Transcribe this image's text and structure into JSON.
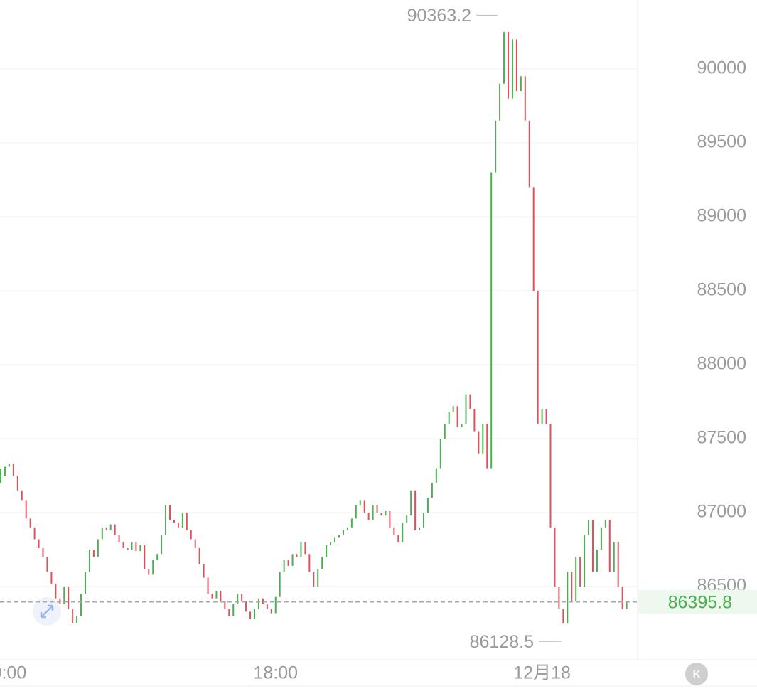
{
  "chart_data": {
    "type": "candlestick",
    "values": [
      87250,
      87310,
      87330,
      87250,
      87150,
      87080,
      86960,
      86900,
      86820,
      86760,
      86700,
      86600,
      86520,
      86420,
      86380,
      86500,
      86350,
      86250,
      86300,
      86450,
      86600,
      86750,
      86700,
      86820,
      86900,
      86880,
      86920,
      86850,
      86800,
      86760,
      86750,
      86800,
      86740,
      86780,
      86620,
      86580,
      86680,
      86720,
      86850,
      87050,
      86950,
      86930,
      86900,
      87000,
      86880,
      86820,
      86760,
      86650,
      86560,
      86450,
      86420,
      86470,
      86400,
      86350,
      86300,
      86380,
      86450,
      86400,
      86330,
      86280,
      86350,
      86420,
      86380,
      86350,
      86320,
      86430,
      86600,
      86680,
      86640,
      86720,
      86700,
      86800,
      86720,
      86600,
      86500,
      86620,
      86700,
      86780,
      86800,
      86830,
      86850,
      86880,
      86900,
      86960,
      87050,
      87080,
      87000,
      86950,
      87050,
      87000,
      86980,
      87010,
      86900,
      86850,
      86800,
      86930,
      86980,
      87150,
      86880,
      86900,
      87000,
      87100,
      87200,
      87300,
      87500,
      87600,
      87680,
      87720,
      87580,
      87600,
      87800,
      87700,
      87550,
      87400,
      87600,
      87300,
      89300,
      89650,
      89900,
      90250,
      89800,
      90200,
      89850,
      89950,
      89650,
      89200,
      88500,
      87600,
      87700,
      87600,
      86900,
      86500,
      86350,
      86250,
      86600,
      86400,
      86700,
      86500,
      86850,
      86950,
      86600,
      86750,
      86900,
      86950,
      86600,
      86800,
      86500,
      86350,
      86395.8
    ],
    "categories": [
      null,
      null,
      "0:00",
      null,
      null,
      null,
      null,
      null,
      null,
      null,
      null,
      null,
      null,
      null,
      null,
      null,
      null,
      null,
      null,
      null,
      null,
      null,
      null,
      null,
      null,
      null,
      null,
      null,
      null,
      null,
      null,
      null,
      null,
      null,
      null,
      null,
      null,
      null,
      null,
      null,
      null,
      null,
      null,
      null,
      null,
      null,
      null,
      null,
      null,
      null,
      null,
      null,
      null,
      null,
      null,
      null,
      null,
      null,
      null,
      null,
      null,
      null,
      null,
      null,
      null,
      "18:00",
      null,
      null,
      null,
      null,
      null,
      null,
      null,
      null,
      null,
      null,
      null,
      null,
      null,
      null,
      null,
      null,
      null,
      null,
      null,
      null,
      null,
      null,
      null,
      null,
      null,
      null,
      null,
      null,
      null,
      null,
      null,
      null,
      null,
      null,
      null,
      null,
      null,
      null,
      null,
      null,
      null,
      null,
      null,
      null,
      null,
      null,
      null,
      null,
      null,
      null,
      null,
      null,
      null,
      null,
      null,
      null,
      null,
      null,
      null,
      null,
      null,
      null,
      "12月18",
      null,
      null,
      null,
      null,
      null,
      null,
      null,
      null,
      null,
      null,
      null,
      null,
      null,
      null,
      null,
      null,
      null,
      null,
      null,
      null
    ],
    "up_color": "#4caf50",
    "down_color": "#e0505e",
    "ylim": [
      86005,
      90466
    ],
    "yticks": [
      86500,
      87000,
      87500,
      88000,
      88500,
      89000,
      89500,
      90000
    ],
    "grid": true,
    "high": 90363.2,
    "low": 86128.5,
    "last_price": 86395.8
  }
}
